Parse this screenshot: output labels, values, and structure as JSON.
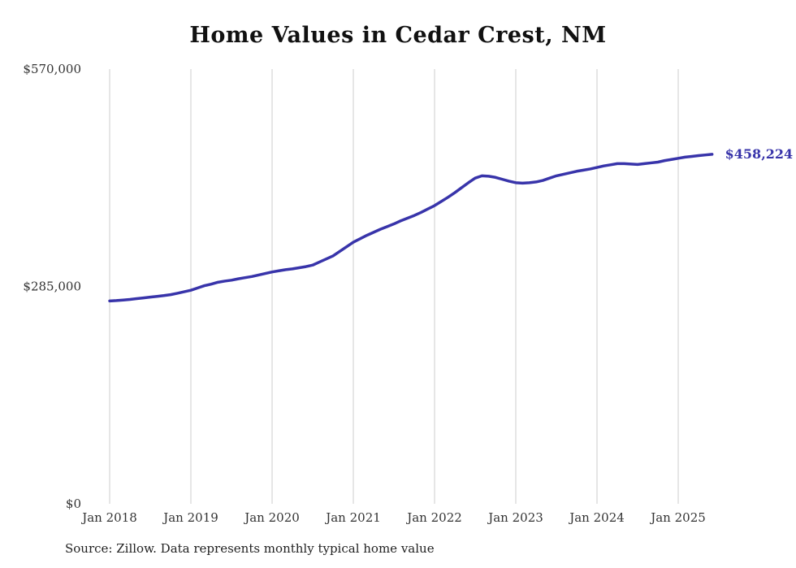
{
  "title": "Home Values in Cedar Crest, NM",
  "source_note": "Source: Zillow. Data represents monthly typical home value",
  "chart_data": {
    "type": "line",
    "title": "Home Values in Cedar Crest, NM",
    "xlabel": "",
    "ylabel": "",
    "ylim": [
      0,
      570000
    ],
    "grid": "vertical-only",
    "legend": "none",
    "line_color": "#3834aa",
    "grid_color": "#cccccc",
    "end_label": "$458,224",
    "latest_value": 458224,
    "y_ticks": [
      {
        "value": 570000,
        "label": "$570,000"
      },
      {
        "value": 285000,
        "label": "$285,000"
      },
      {
        "value": 0,
        "label": "$0"
      }
    ],
    "x_ticks": [
      {
        "index": 0,
        "label": "Jan 2018"
      },
      {
        "index": 12,
        "label": "Jan 2019"
      },
      {
        "index": 24,
        "label": "Jan 2020"
      },
      {
        "index": 36,
        "label": "Jan 2021"
      },
      {
        "index": 48,
        "label": "Jan 2022"
      },
      {
        "index": 60,
        "label": "Jan 2023"
      },
      {
        "index": 72,
        "label": "Jan 2024"
      },
      {
        "index": 84,
        "label": "Jan 2025"
      }
    ],
    "x": [
      "2018-01",
      "2018-02",
      "2018-03",
      "2018-04",
      "2018-05",
      "2018-06",
      "2018-07",
      "2018-08",
      "2018-09",
      "2018-10",
      "2018-11",
      "2018-12",
      "2019-01",
      "2019-02",
      "2019-03",
      "2019-04",
      "2019-05",
      "2019-06",
      "2019-07",
      "2019-08",
      "2019-09",
      "2019-10",
      "2019-11",
      "2019-12",
      "2020-01",
      "2020-02",
      "2020-03",
      "2020-04",
      "2020-05",
      "2020-06",
      "2020-07",
      "2020-08",
      "2020-09",
      "2020-10",
      "2020-11",
      "2020-12",
      "2021-01",
      "2021-02",
      "2021-03",
      "2021-04",
      "2021-05",
      "2021-06",
      "2021-07",
      "2021-08",
      "2021-09",
      "2021-10",
      "2021-11",
      "2021-12",
      "2022-01",
      "2022-02",
      "2022-03",
      "2022-04",
      "2022-05",
      "2022-06",
      "2022-07",
      "2022-08",
      "2022-09",
      "2022-10",
      "2022-11",
      "2022-12",
      "2023-01",
      "2023-02",
      "2023-03",
      "2023-04",
      "2023-05",
      "2023-06",
      "2023-07",
      "2023-08",
      "2023-09",
      "2023-10",
      "2023-11",
      "2023-12",
      "2024-01",
      "2024-02",
      "2024-03",
      "2024-04",
      "2024-05",
      "2024-06",
      "2024-07",
      "2024-08",
      "2024-09",
      "2024-10",
      "2024-11",
      "2024-12",
      "2025-01",
      "2025-02",
      "2025-03",
      "2025-04",
      "2025-05",
      "2025-06"
    ],
    "series": [
      {
        "name": "Typical home value",
        "values": [
          266000,
          266500,
          267200,
          268000,
          269000,
          270000,
          271000,
          272000,
          273000,
          274200,
          276000,
          278000,
          280000,
          283000,
          286000,
          288000,
          290500,
          292000,
          293200,
          295000,
          296500,
          298000,
          300000,
          302000,
          304000,
          305500,
          307000,
          308000,
          309500,
          311000,
          313000,
          317000,
          321000,
          325000,
          331000,
          337000,
          343000,
          347500,
          352000,
          356000,
          360000,
          363500,
          367000,
          371000,
          374500,
          378000,
          382000,
          386500,
          391000,
          396500,
          402000,
          408000,
          414500,
          421000,
          427000,
          430000,
          429500,
          428000,
          425500,
          423000,
          421000,
          420500,
          421000,
          422000,
          424000,
          427000,
          430000,
          432000,
          434000,
          436000,
          437500,
          439000,
          441000,
          443000,
          444500,
          446000,
          446000,
          445500,
          445000,
          446000,
          447000,
          448000,
          450000,
          451500,
          453000,
          454500,
          455500,
          456500,
          457400,
          458224
        ]
      }
    ]
  }
}
